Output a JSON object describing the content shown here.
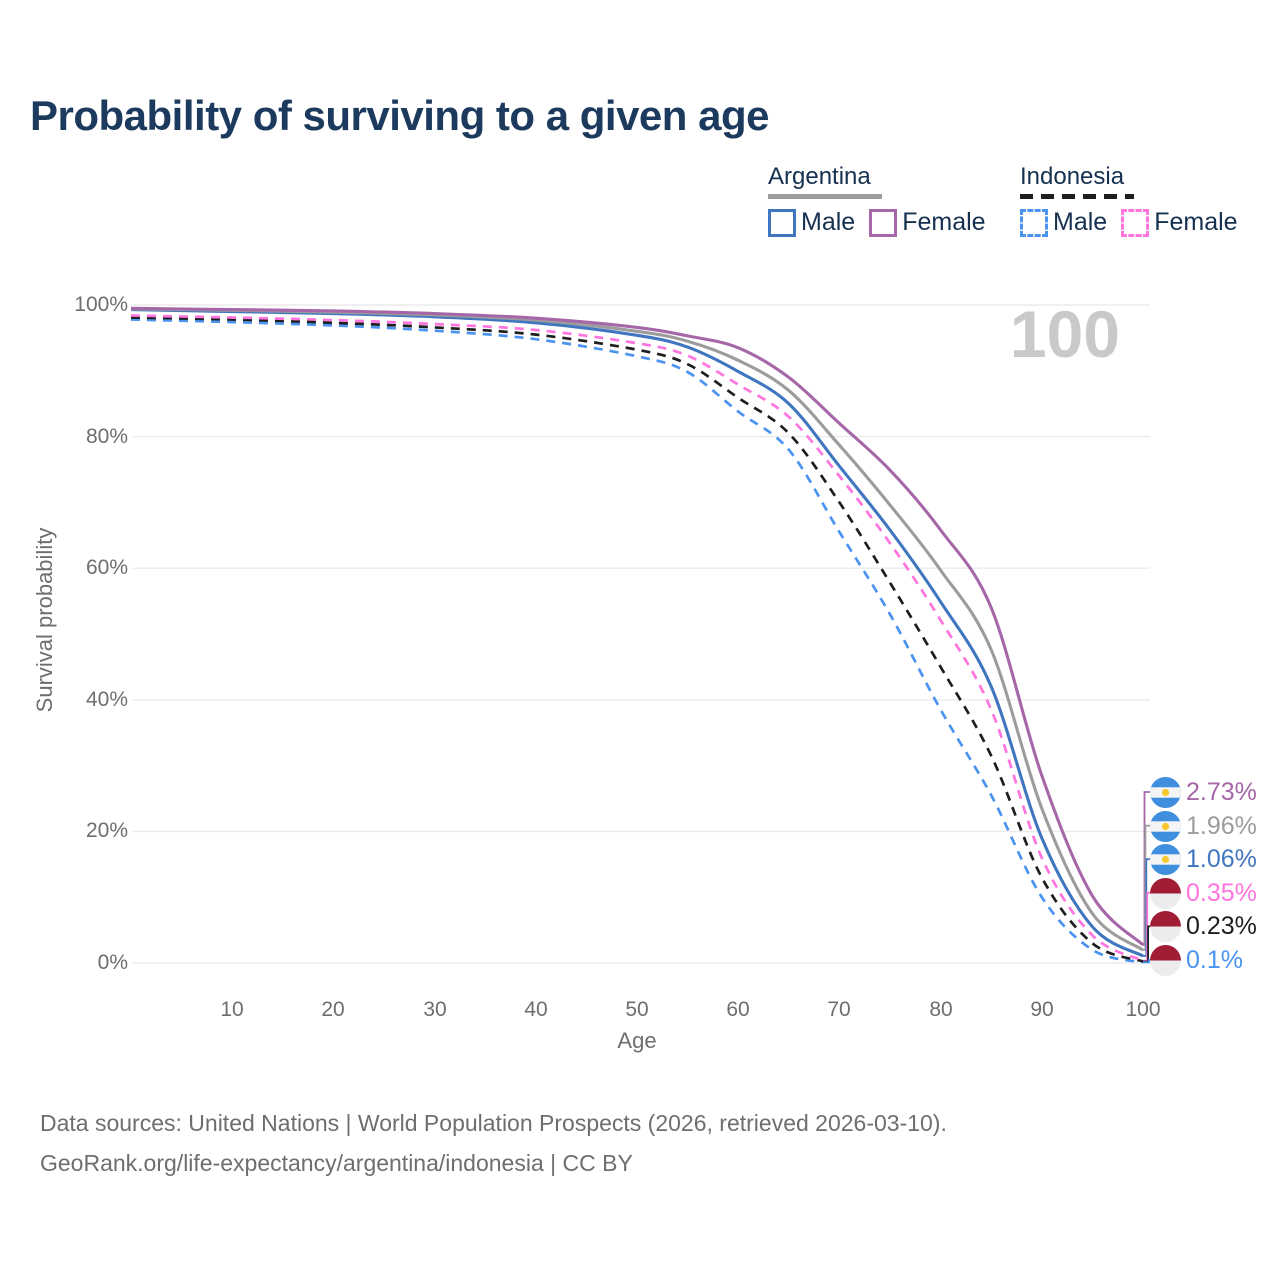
{
  "title": "Probability of surviving to a given age",
  "watermark_label": "100",
  "legend": {
    "groups": [
      {
        "label": "Argentina",
        "style": "solid",
        "underline_series": 1,
        "items": [
          {
            "label": "Male",
            "series": 2
          },
          {
            "label": "Female",
            "series": 0
          }
        ]
      },
      {
        "label": "Indonesia",
        "style": "dashed",
        "underline_series": 4,
        "items": [
          {
            "label": "Male",
            "series": 5
          },
          {
            "label": "Female",
            "series": 3
          }
        ]
      }
    ]
  },
  "chart_data": {
    "type": "line",
    "title": "Probability of surviving to a given age",
    "xlabel": "Age",
    "ylabel": "Survival probability",
    "xlim": [
      0,
      100
    ],
    "ylim": [
      0,
      100
    ],
    "grid": true,
    "legend_position": "top-right",
    "x_tick_labels": [
      "10",
      "20",
      "30",
      "40",
      "50",
      "60",
      "70",
      "80",
      "90",
      "100"
    ],
    "x_tick_values": [
      10,
      20,
      30,
      40,
      50,
      60,
      70,
      80,
      90,
      100
    ],
    "y_tick_labels": [
      "0%",
      "20%",
      "40%",
      "60%",
      "80%",
      "100%"
    ],
    "y_tick_values": [
      0,
      20,
      40,
      60,
      80,
      100
    ],
    "x": [
      0,
      10,
      20,
      30,
      40,
      50,
      55,
      60,
      65,
      70,
      75,
      80,
      85,
      90,
      95,
      100
    ],
    "series": [
      {
        "name": "Argentina Female",
        "country": "Argentina",
        "sex": "Female",
        "color": "#a567a8",
        "dash": false,
        "flag": "argentina",
        "end_label": "2.73%",
        "values": [
          99.5,
          99.3,
          99.1,
          98.7,
          98.0,
          96.6,
          95.3,
          93.5,
          89.0,
          82.0,
          74.9,
          65.8,
          54.0,
          28.5,
          10.2,
          2.73
        ]
      },
      {
        "name": "Argentina",
        "country": "Argentina",
        "sex": "Both",
        "color": "#9c9c9c",
        "dash": false,
        "flag": "argentina",
        "end_label": "1.96%",
        "values": [
          99.4,
          99.2,
          98.9,
          98.5,
          97.7,
          96.0,
          94.5,
          91.6,
          87.0,
          78.7,
          69.6,
          59.7,
          47.6,
          23.5,
          7.5,
          1.96
        ]
      },
      {
        "name": "Argentina Male",
        "country": "Argentina",
        "sex": "Male",
        "color": "#4076bf",
        "dash": false,
        "flag": "argentina",
        "end_label": "1.06%",
        "values": [
          99.3,
          99.0,
          98.7,
          98.2,
          97.3,
          95.4,
          93.6,
          89.9,
          85.0,
          75.5,
          65.8,
          54.9,
          42.0,
          19.0,
          5.5,
          1.06
        ]
      },
      {
        "name": "Indonesia Female",
        "country": "Indonesia",
        "sex": "Female",
        "color": "#ff74df",
        "dash": true,
        "flag": "indonesia",
        "end_label": "0.35%",
        "values": [
          98.4,
          98.1,
          97.7,
          97.1,
          96.2,
          94.2,
          92.3,
          87.9,
          83.0,
          74.0,
          63.8,
          52.1,
          38.5,
          16.0,
          4.2,
          0.35
        ]
      },
      {
        "name": "Indonesia",
        "country": "Indonesia",
        "sex": "Both",
        "color": "#1e1e1e",
        "dash": true,
        "flag": "indonesia",
        "end_label": "0.23%",
        "values": [
          98.1,
          97.8,
          97.3,
          96.6,
          95.5,
          93.2,
          91.0,
          85.9,
          80.5,
          70.0,
          57.8,
          45.0,
          31.5,
          13.0,
          3.0,
          0.23
        ]
      },
      {
        "name": "Indonesia Male",
        "country": "Indonesia",
        "sex": "Male",
        "color": "#4a93f1",
        "dash": true,
        "flag": "indonesia",
        "end_label": "0.1%",
        "values": [
          97.8,
          97.4,
          96.9,
          96.1,
          94.8,
          92.2,
          89.8,
          83.8,
          78.0,
          65.5,
          53.0,
          38.5,
          25.5,
          10.0,
          2.0,
          0.1
        ]
      }
    ]
  },
  "footer": {
    "line1": "Data sources: United Nations | World Population Prospects (2026, retrieved 2026-03-10).",
    "line2": "GeoRank.org/life-expectancy/argentina/indonesia | CC BY"
  },
  "colors": {
    "title_text": "#1c3a5e",
    "legend_text": "#16304f",
    "axis_text": "#6e6e6e",
    "gridline": "#ebebeb",
    "watermark": "#c9c9c9",
    "flag_argentina_blue": "#3f8fde",
    "flag_argentina_sun": "#f6c82e",
    "flag_indonesia_red": "#a01d35"
  }
}
